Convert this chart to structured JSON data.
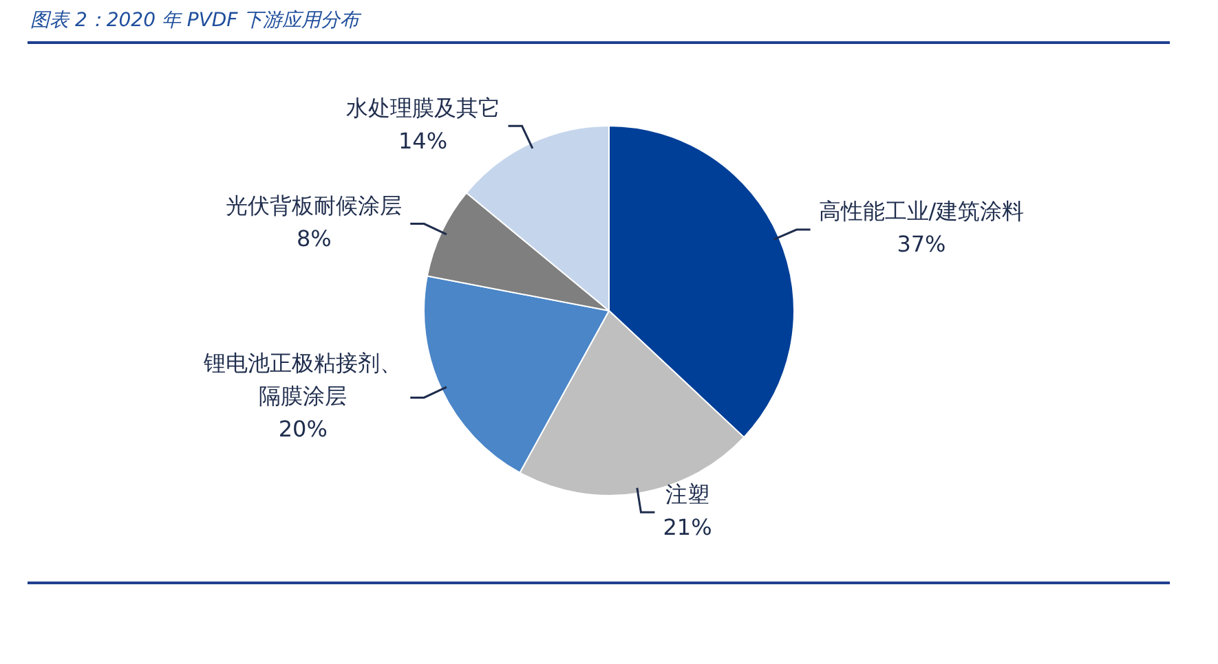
{
  "chart_data": {
    "type": "pie",
    "title": "图表 2：2020 年 PVDF 下游应用分布",
    "categories": [
      "高性能工业/建筑涂料",
      "注塑",
      "锂电池正极粘接剂、隔膜涂层",
      "光伏背板耐候涂层",
      "水处理膜及其它"
    ],
    "values": [
      37,
      21,
      20,
      8,
      14
    ],
    "colors": [
      "#003f98",
      "#bfbfbf",
      "#4a86c8",
      "#7f7f7f",
      "#c5d5ec"
    ],
    "value_labels": [
      "37%",
      "21%",
      "20%",
      "8%",
      "14%"
    ],
    "legend": false
  }
}
